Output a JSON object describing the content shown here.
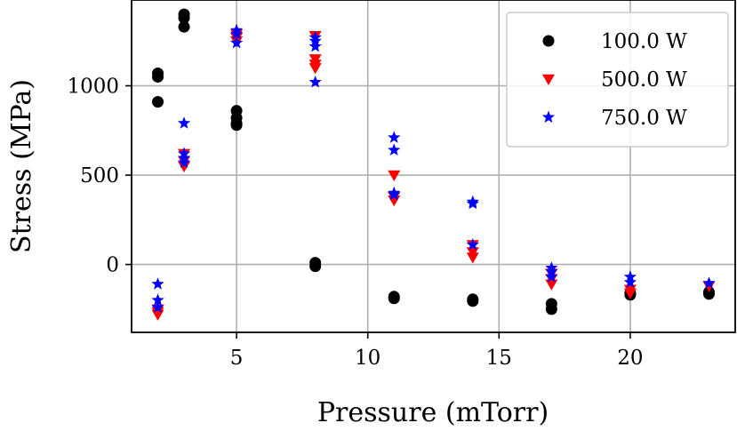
{
  "chart_data": {
    "type": "scatter",
    "title": "",
    "xlabel": "Pressure (mTorr)",
    "ylabel": "Stress (MPa)",
    "xlim": [
      1.0,
      24.0
    ],
    "ylim": [
      -380,
      1480
    ],
    "xticks": [
      5,
      10,
      15,
      20
    ],
    "yticks": [
      0,
      500,
      1000
    ],
    "grid": true,
    "legend_position": "top-right",
    "series": [
      {
        "name": "100.0 W",
        "marker": "circle",
        "color": "#000000",
        "points": [
          [
            2,
            1070
          ],
          [
            2,
            1050
          ],
          [
            2,
            910
          ],
          [
            3,
            1400
          ],
          [
            3,
            1380
          ],
          [
            3,
            1330
          ],
          [
            5,
            860
          ],
          [
            5,
            820
          ],
          [
            5,
            790
          ],
          [
            5,
            780
          ],
          [
            8,
            10
          ],
          [
            8,
            -10
          ],
          [
            11,
            -180
          ],
          [
            11,
            -190
          ],
          [
            14,
            -195
          ],
          [
            14,
            -205
          ],
          [
            17,
            -220
          ],
          [
            17,
            -250
          ],
          [
            20,
            -160
          ],
          [
            20,
            -170
          ],
          [
            23,
            -155
          ],
          [
            23,
            -165
          ]
        ]
      },
      {
        "name": "500.0 W",
        "marker": "triangle-down",
        "color": "#ff0000",
        "points": [
          [
            2,
            -250
          ],
          [
            2,
            -265
          ],
          [
            2,
            -280
          ],
          [
            3,
            620
          ],
          [
            3,
            580
          ],
          [
            3,
            550
          ],
          [
            5,
            1290
          ],
          [
            5,
            1270
          ],
          [
            5,
            1250
          ],
          [
            8,
            1280
          ],
          [
            8,
            1150
          ],
          [
            8,
            1120
          ],
          [
            8,
            1100
          ],
          [
            11,
            500
          ],
          [
            11,
            380
          ],
          [
            11,
            360
          ],
          [
            14,
            110
          ],
          [
            14,
            70
          ],
          [
            14,
            40
          ],
          [
            17,
            -50
          ],
          [
            17,
            -80
          ],
          [
            17,
            -110
          ],
          [
            20,
            -140
          ],
          [
            20,
            -160
          ],
          [
            23,
            -120
          ]
        ]
      },
      {
        "name": "750.0 W",
        "marker": "star",
        "color": "#0000ff",
        "points": [
          [
            2,
            -110
          ],
          [
            2,
            -200
          ],
          [
            2,
            -240
          ],
          [
            3,
            790
          ],
          [
            3,
            620
          ],
          [
            3,
            595
          ],
          [
            3,
            570
          ],
          [
            5,
            1310
          ],
          [
            5,
            1290
          ],
          [
            5,
            1240
          ],
          [
            8,
            1270
          ],
          [
            8,
            1250
          ],
          [
            8,
            1220
          ],
          [
            8,
            1020
          ],
          [
            11,
            710
          ],
          [
            11,
            640
          ],
          [
            11,
            400
          ],
          [
            11,
            390
          ],
          [
            14,
            350
          ],
          [
            14,
            340
          ],
          [
            14,
            110
          ],
          [
            17,
            -20
          ],
          [
            17,
            -40
          ],
          [
            17,
            -70
          ],
          [
            20,
            -70
          ],
          [
            20,
            -100
          ],
          [
            23,
            -105
          ]
        ]
      }
    ]
  }
}
